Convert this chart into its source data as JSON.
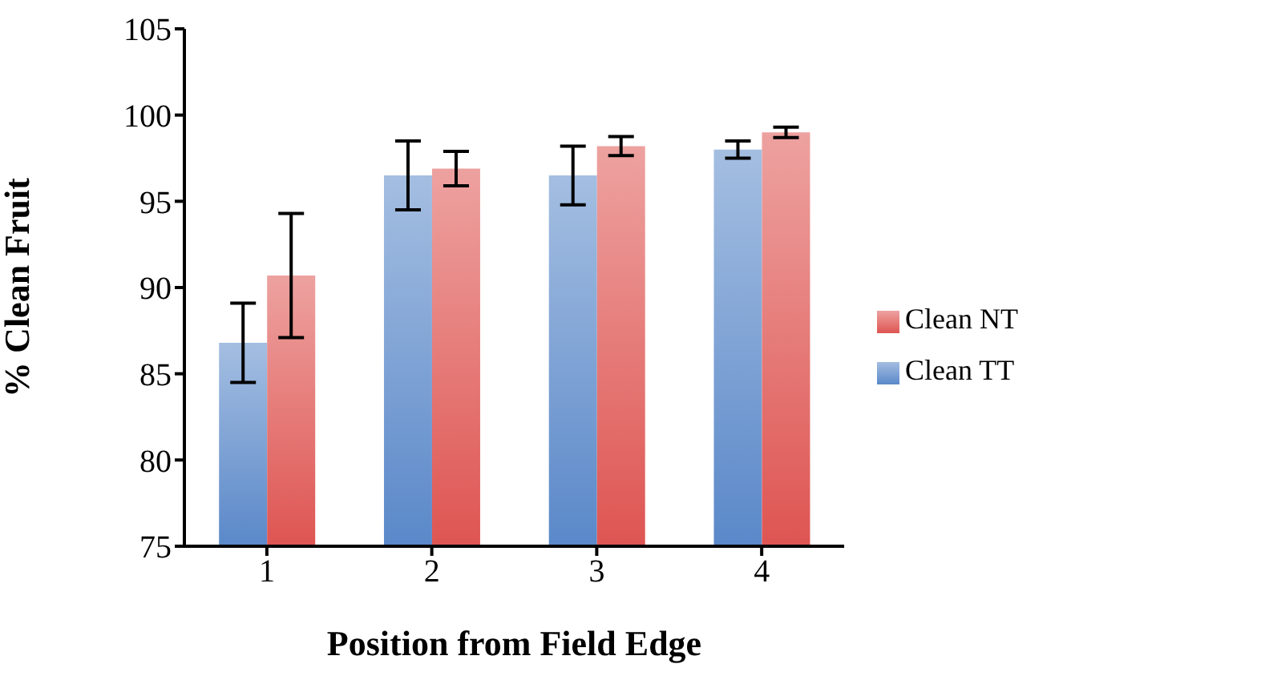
{
  "chart_data": {
    "type": "bar",
    "xlabel": "Position from Field Edge",
    "ylabel": "% Clean Fruit",
    "categories": [
      "1",
      "2",
      "3",
      "4"
    ],
    "series": [
      {
        "name": "Clean TT",
        "color": "#5a88c9",
        "values": [
          86.8,
          96.5,
          96.5,
          98.0
        ],
        "errors": [
          2.3,
          2.0,
          1.7,
          0.5
        ]
      },
      {
        "name": "Clean NT",
        "color": "#de5552",
        "values": [
          90.7,
          96.9,
          98.2,
          99.0
        ],
        "errors": [
          3.6,
          1.0,
          0.55,
          0.3
        ]
      }
    ],
    "ylim": [
      75,
      105
    ],
    "yticks": [
      75,
      80,
      85,
      90,
      95,
      100,
      105
    ],
    "grid": false,
    "legend": "right"
  }
}
